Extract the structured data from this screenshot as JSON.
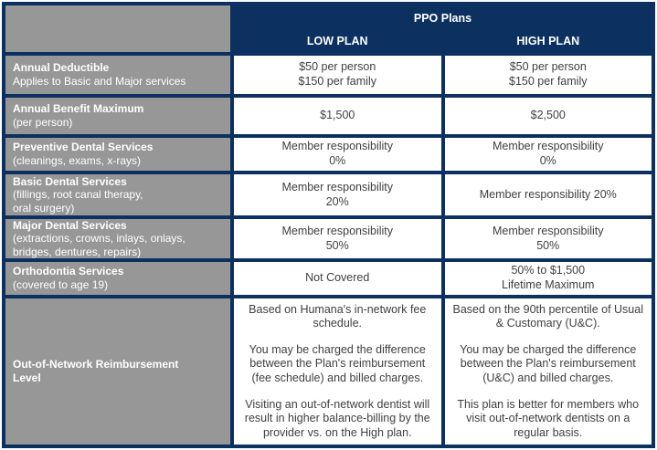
{
  "colors": {
    "navy": "#0c3160",
    "gray": "#979797",
    "text": "#3f3f3f"
  },
  "table": {
    "title": "PPO Plans",
    "columns": [
      "LOW PLAN",
      "HIGH PLAN"
    ],
    "rows": [
      {
        "label": [
          "Annual Deductible"
        ],
        "sub": [
          "Applies to Basic and Major services"
        ],
        "low": [
          "$50 per person",
          "$150 per family"
        ],
        "high": [
          "$50 per person",
          "$150 per family"
        ]
      },
      {
        "label": [
          "Annual Benefit Maximum"
        ],
        "sub": [
          "(per person)"
        ],
        "low": [
          "$1,500"
        ],
        "high": [
          "$2,500"
        ]
      },
      {
        "label": [
          "Preventive Dental Services"
        ],
        "sub": [
          "(cleanings, exams, x-rays)"
        ],
        "low": [
          "Member responsibility",
          "0%"
        ],
        "high": [
          "Member responsibility",
          "0%"
        ]
      },
      {
        "label": [
          "Basic Dental Services"
        ],
        "sub": [
          "(fillings, root canal therapy,",
          "oral surgery)"
        ],
        "low": [
          "Member responsibility",
          "20%"
        ],
        "high": [
          "Member responsibility 20%"
        ]
      },
      {
        "label": [
          "Major Dental Services"
        ],
        "sub": [
          "(extractions, crowns, inlays, onlays,",
          "bridges, dentures, repairs)"
        ],
        "low": [
          "Member responsibility",
          "50%"
        ],
        "high": [
          "Member responsibility",
          "50%"
        ]
      },
      {
        "label": [
          "Orthodontia Services"
        ],
        "sub": [
          "(covered to age 19)"
        ],
        "low": [
          "Not Covered"
        ],
        "high": [
          "50% to $1,500",
          "Lifetime Maximum"
        ]
      },
      {
        "label": [
          "Out-of-Network Reimbursement",
          "Level"
        ],
        "sub": [],
        "paragraphs": true,
        "low": [
          "Based on Humana's in-network fee schedule.",
          "You may be charged the difference between the Plan's reimbursement (fee schedule) and billed charges.",
          "Visiting an out-of-network dentist will result in higher balance-billing by the provider vs. on the High plan."
        ],
        "high": [
          "Based on the 90th percentile of Usual & Customary (U&C).",
          "You may be charged the difference between the Plan's reimbursement (U&C) and billed charges.",
          "This plan is better for members who visit out-of-network dentists on a regular basis."
        ]
      }
    ]
  }
}
